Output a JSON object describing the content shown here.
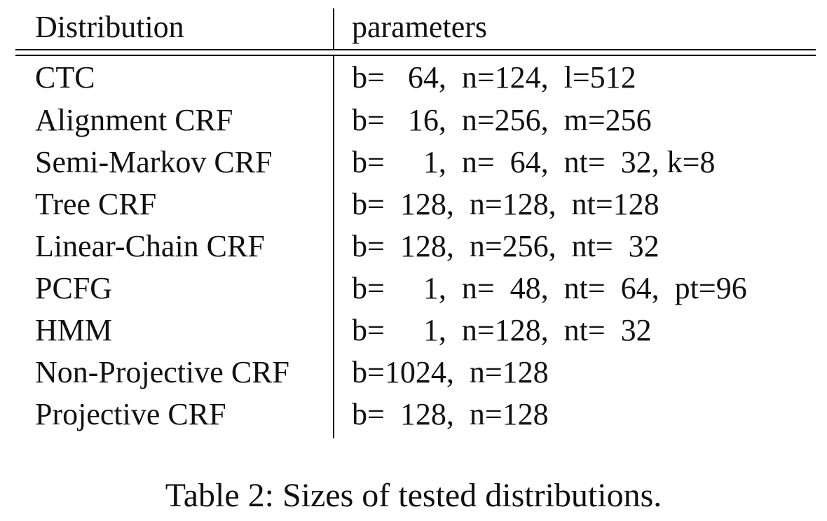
{
  "table": {
    "headers": {
      "distribution": "Distribution",
      "parameters": "parameters"
    },
    "rows": [
      {
        "distribution": "CTC",
        "parameters": "b=   64,  n=124,  l=512"
      },
      {
        "distribution": "Alignment CRF",
        "parameters": "b=   16,  n=256,  m=256"
      },
      {
        "distribution": "Semi-Markov CRF",
        "parameters": "b=     1,  n=  64,  nt=  32, k=8"
      },
      {
        "distribution": "Tree CRF",
        "parameters": "b=  128,  n=128,  nt=128"
      },
      {
        "distribution": "Linear-Chain CRF",
        "parameters": "b=  128,  n=256,  nt=  32"
      },
      {
        "distribution": "PCFG",
        "parameters": "b=     1,  n=  48,  nt=  64,  pt=96"
      },
      {
        "distribution": "HMM",
        "parameters": "b=     1,  n=128,  nt=  32"
      },
      {
        "distribution": "Non-Projective CRF",
        "parameters": "b=1024,  n=128"
      },
      {
        "distribution": "Projective CRF",
        "parameters": "b=  128,  n=128"
      }
    ]
  },
  "caption": "Table 2: Sizes of tested distributions."
}
